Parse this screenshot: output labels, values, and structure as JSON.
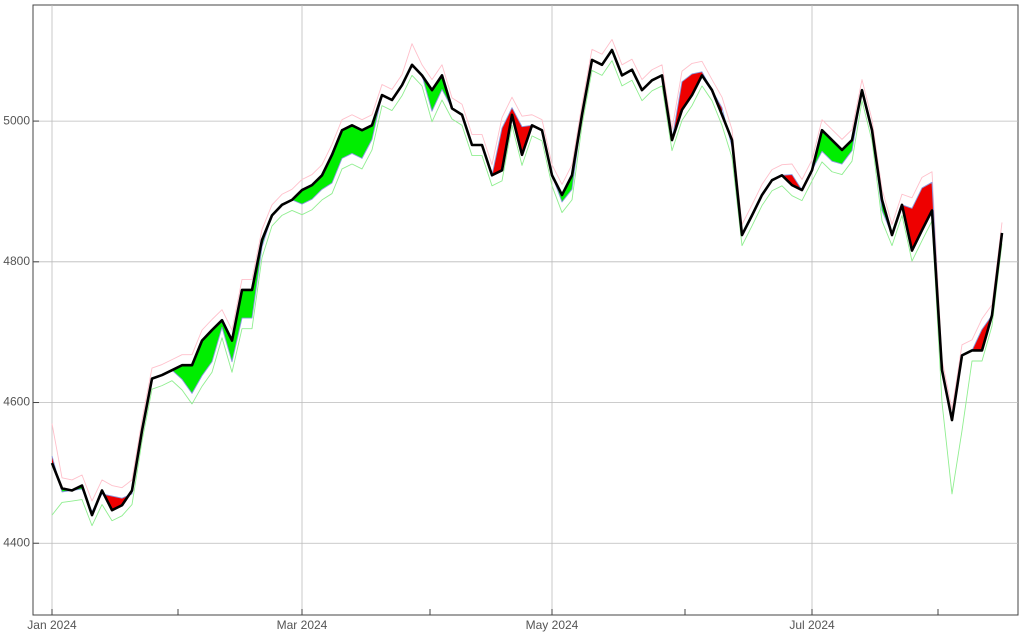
{
  "chart_data": {
    "type": "line",
    "categories": [
      "Jan 2024",
      null,
      null,
      null,
      null,
      null,
      null,
      null,
      null,
      null,
      null,
      null,
      null,
      null,
      null,
      null,
      null,
      null,
      null,
      null,
      null,
      null,
      null,
      null,
      null,
      "Mar 2024",
      null,
      null,
      null,
      null,
      null,
      null,
      null,
      null,
      null,
      null,
      null,
      null,
      null,
      null,
      null,
      null,
      null,
      null,
      null,
      null,
      null,
      null,
      null,
      null,
      "May 2024",
      null,
      null,
      null,
      null,
      null,
      null,
      null,
      null,
      null,
      null,
      null,
      null,
      null,
      null,
      null,
      null,
      null,
      null,
      null,
      null,
      null,
      null,
      null,
      null,
      null,
      "Jul 2024",
      null,
      null,
      null,
      null,
      null,
      null,
      null,
      null,
      null,
      null,
      null,
      null,
      null,
      null,
      null,
      null,
      null,
      null,
      null
    ],
    "series": [
      {
        "color": "#8899dd",
        "values": [
          4524,
          4473,
          4475,
          4477,
          4445,
          4470,
          4467,
          4464,
          4470,
          4560,
          4634,
          4639,
          4646,
          4633,
          4613,
          4638,
          4658,
          4707,
          4658,
          4720,
          4720,
          4821,
          4866,
          4881,
          4888,
          4882,
          4889,
          4903,
          4912,
          4947,
          4954,
          4947,
          4974,
          5037,
          5030,
          5051,
          5080,
          5065,
          5014,
          5045,
          5018,
          5009,
          4966,
          4966,
          4923,
          4990,
          5019,
          4992,
          4994,
          4987,
          4923,
          4885,
          4903,
          5009,
          5087,
          5080,
          5101,
          5065,
          5073,
          5044,
          5058,
          5065,
          4973,
          5056,
          5067,
          5070,
          5044,
          5019,
          4963,
          4838,
          4866,
          4895,
          4916,
          4923,
          4924,
          4902,
          4930,
          4957,
          4943,
          4939,
          4958,
          5044,
          4987,
          4873,
          4838,
          4881,
          4876,
          4905,
          4913,
          4646,
          4575,
          4667,
          4674,
          4704,
          4724,
          4841
        ]
      },
      {
        "color": "#000000",
        "values": [
          4514,
          4478,
          4475,
          4482,
          4440,
          4475,
          4447,
          4454,
          4475,
          4560,
          4634,
          4639,
          4646,
          4653,
          4653,
          4688,
          4703,
          4717,
          4688,
          4760,
          4760,
          4831,
          4866,
          4881,
          4888,
          4902,
          4909,
          4923,
          4952,
          4987,
          4994,
          4987,
          4994,
          5037,
          5030,
          5051,
          5080,
          5065,
          5044,
          5065,
          5018,
          5009,
          4966,
          4966,
          4923,
          4930,
          5009,
          4952,
          4994,
          4987,
          4923,
          4895,
          4923,
          5009,
          5087,
          5080,
          5101,
          5065,
          5073,
          5044,
          5058,
          5065,
          4973,
          5016,
          5037,
          5065,
          5044,
          5009,
          4973,
          4838,
          4866,
          4895,
          4916,
          4923,
          4909,
          4902,
          4930,
          4987,
          4973,
          4959,
          4973,
          5044,
          4987,
          4888,
          4838,
          4881,
          4816,
          4845,
          4873,
          4646,
          4575,
          4667,
          4674,
          4674,
          4724,
          4841
        ]
      },
      {
        "color": "#ffc0cb",
        "values": [
          4570,
          4493,
          4490,
          4497,
          4460,
          4490,
          4482,
          4479,
          4490,
          4575,
          4649,
          4654,
          4661,
          4668,
          4668,
          4703,
          4718,
          4732,
          4703,
          4775,
          4775,
          4846,
          4881,
          4896,
          4903,
          4917,
          4924,
          4938,
          4967,
          5002,
          5009,
          5002,
          5009,
          5052,
          5045,
          5066,
          5110,
          5080,
          5059,
          5080,
          5033,
          5024,
          4981,
          4981,
          4938,
          5005,
          5034,
          5007,
          5009,
          5002,
          4938,
          4910,
          4938,
          5024,
          5102,
          5095,
          5116,
          5080,
          5088,
          5059,
          5073,
          5080,
          4988,
          5071,
          5082,
          5085,
          5059,
          5034,
          4988,
          4853,
          4881,
          4910,
          4931,
          4938,
          4939,
          4917,
          4945,
          5002,
          4988,
          4974,
          4988,
          5059,
          5002,
          4903,
          4853,
          4896,
          4891,
          4920,
          4928,
          4661,
          4590,
          4682,
          4689,
          4719,
          4739,
          4856
        ]
      },
      {
        "color": "#90ee90",
        "values": [
          4440,
          4458,
          4460,
          4462,
          4425,
          4455,
          4432,
          4439,
          4455,
          4545,
          4619,
          4624,
          4631,
          4618,
          4598,
          4623,
          4643,
          4692,
          4643,
          4705,
          4705,
          4806,
          4851,
          4866,
          4873,
          4867,
          4874,
          4888,
          4897,
          4932,
          4939,
          4932,
          4959,
          5022,
          5015,
          5036,
          5065,
          5050,
          4999,
          5030,
          5003,
          4994,
          4951,
          4951,
          4908,
          4915,
          4994,
          4937,
          4979,
          4972,
          4908,
          4870,
          4888,
          4994,
          5072,
          5065,
          5086,
          5050,
          5058,
          5029,
          5043,
          5050,
          4958,
          5001,
          5022,
          5050,
          5029,
          4994,
          4948,
          4823,
          4851,
          4880,
          4901,
          4908,
          4894,
          4887,
          4915,
          4942,
          4928,
          4924,
          4943,
          5029,
          4972,
          4858,
          4823,
          4866,
          4801,
          4830,
          4858,
          4600,
          4470,
          4560,
          4659,
          4659,
          4709,
          4826
        ]
      }
    ],
    "up_color": "#00ee00",
    "down_color": "#ee0000",
    "ylim": [
      4298,
      5165
    ],
    "yticks": [
      4400,
      4600,
      4800,
      5000
    ],
    "grid": true
  }
}
